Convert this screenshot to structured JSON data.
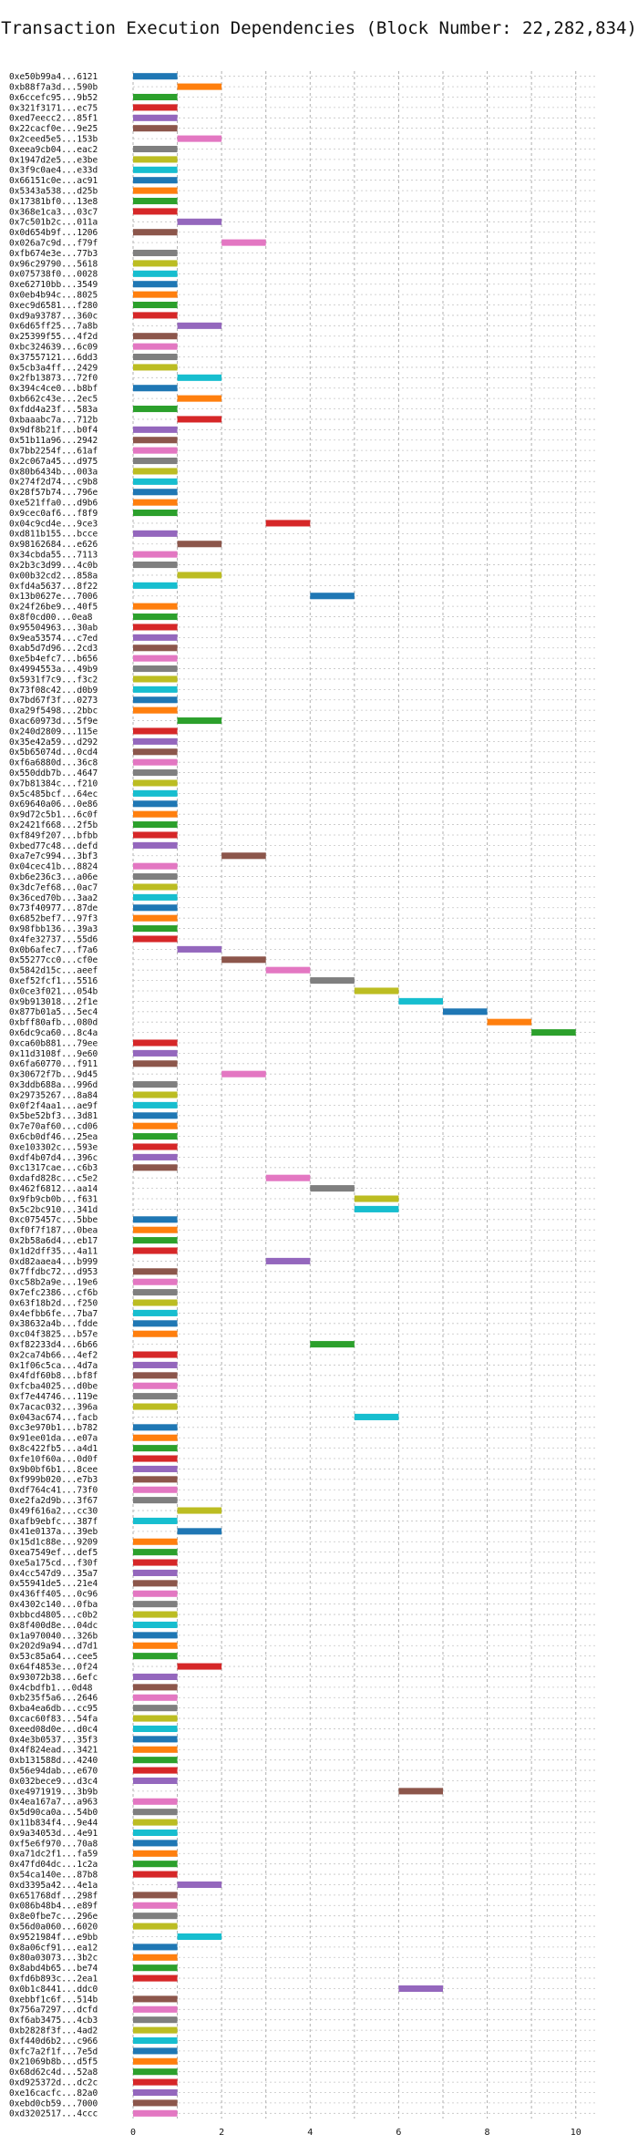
{
  "chart_data": {
    "type": "bar",
    "orientation": "horizontal",
    "title": "Transaction Execution Dependencies (Block Number: 22,282,834)",
    "xlabel": "",
    "ylabel": "",
    "xlim": [
      0,
      10.5
    ],
    "xticks": [
      0,
      2,
      4,
      6,
      8,
      10
    ],
    "grid": true,
    "legend": "none",
    "palette": [
      "#1f77b4",
      "#ff7f0e",
      "#2ca02c",
      "#d62728",
      "#9467bd",
      "#8c564b",
      "#e377c2",
      "#7f7f7f",
      "#bcbd22",
      "#17becf"
    ],
    "transactions": [
      {
        "label": "0xe50b99a4...6121",
        "start": 0,
        "end": 1
      },
      {
        "label": "0xb88f7a3d...590b",
        "start": 1,
        "end": 2
      },
      {
        "label": "0x6ccefc95...9b52",
        "start": 0,
        "end": 1
      },
      {
        "label": "0x321f3171...ec75",
        "start": 0,
        "end": 1
      },
      {
        "label": "0xed7eecc2...85f1",
        "start": 0,
        "end": 1
      },
      {
        "label": "0x22cacf0e...9e25",
        "start": 0,
        "end": 1
      },
      {
        "label": "0x2ceed5e5...153b",
        "start": 1,
        "end": 2
      },
      {
        "label": "0xeea9cb04...eac2",
        "start": 0,
        "end": 1
      },
      {
        "label": "0x1947d2e5...e3be",
        "start": 0,
        "end": 1
      },
      {
        "label": "0x3f9c0ae4...e33d",
        "start": 0,
        "end": 1
      },
      {
        "label": "0x66151c0e...ac91",
        "start": 0,
        "end": 1
      },
      {
        "label": "0x5343a538...d25b",
        "start": 0,
        "end": 1
      },
      {
        "label": "0x17381bf0...13e8",
        "start": 0,
        "end": 1
      },
      {
        "label": "0x368e1ca3...03c7",
        "start": 0,
        "end": 1
      },
      {
        "label": "0x7c501b2c...011a",
        "start": 1,
        "end": 2
      },
      {
        "label": "0x0d654b9f...1206",
        "start": 0,
        "end": 1
      },
      {
        "label": "0x026a7c9d...f79f",
        "start": 2,
        "end": 3
      },
      {
        "label": "0xfb674e3e...77b3",
        "start": 0,
        "end": 1
      },
      {
        "label": "0x96c29790...5618",
        "start": 0,
        "end": 1
      },
      {
        "label": "0x075738f0...0028",
        "start": 0,
        "end": 1
      },
      {
        "label": "0xe62710bb...3549",
        "start": 0,
        "end": 1
      },
      {
        "label": "0x0eb4b94c...8025",
        "start": 0,
        "end": 1
      },
      {
        "label": "0xec9d6581...f280",
        "start": 0,
        "end": 1
      },
      {
        "label": "0xd9a93787...360c",
        "start": 0,
        "end": 1
      },
      {
        "label": "0x6d65ff25...7a8b",
        "start": 1,
        "end": 2
      },
      {
        "label": "0x25399f55...4f2d",
        "start": 0,
        "end": 1
      },
      {
        "label": "0xbc324639...6c09",
        "start": 0,
        "end": 1
      },
      {
        "label": "0x37557121...6dd3",
        "start": 0,
        "end": 1
      },
      {
        "label": "0x5cb3a4ff...2429",
        "start": 0,
        "end": 1
      },
      {
        "label": "0x2fb13873...72f0",
        "start": 1,
        "end": 2
      },
      {
        "label": "0x394c4ce0...b8bf",
        "start": 0,
        "end": 1
      },
      {
        "label": "0xb662c43e...2ec5",
        "start": 1,
        "end": 2
      },
      {
        "label": "0xfdd4a23f...583a",
        "start": 0,
        "end": 1
      },
      {
        "label": "0xbaaabc7a...712b",
        "start": 1,
        "end": 2
      },
      {
        "label": "0x9df8b21f...b0f4",
        "start": 0,
        "end": 1
      },
      {
        "label": "0x51b11a96...2942",
        "start": 0,
        "end": 1
      },
      {
        "label": "0x7bb2254f...61af",
        "start": 0,
        "end": 1
      },
      {
        "label": "0x2c067a45...d975",
        "start": 0,
        "end": 1
      },
      {
        "label": "0x80b6434b...003a",
        "start": 0,
        "end": 1
      },
      {
        "label": "0x274f2d74...c9b8",
        "start": 0,
        "end": 1
      },
      {
        "label": "0x28f57b74...796e",
        "start": 0,
        "end": 1
      },
      {
        "label": "0xe521ffa0...d9b6",
        "start": 0,
        "end": 1
      },
      {
        "label": "0x9cec0af6...f8f9",
        "start": 0,
        "end": 1
      },
      {
        "label": "0x04c9cd4e...9ce3",
        "start": 3,
        "end": 4
      },
      {
        "label": "0xd811b155...bcce",
        "start": 0,
        "end": 1
      },
      {
        "label": "0x98162684...e626",
        "start": 1,
        "end": 2
      },
      {
        "label": "0x34cbda55...7113",
        "start": 0,
        "end": 1
      },
      {
        "label": "0x2b3c3d99...4c0b",
        "start": 0,
        "end": 1
      },
      {
        "label": "0x00b32cd2...858a",
        "start": 1,
        "end": 2
      },
      {
        "label": "0xfd4a5637...8f22",
        "start": 0,
        "end": 1
      },
      {
        "label": "0x13b0627e...7006",
        "start": 4,
        "end": 5
      },
      {
        "label": "0x24f26be9...40f5",
        "start": 0,
        "end": 1
      },
      {
        "label": "0x8f0cd00...0ea8",
        "start": 0,
        "end": 1
      },
      {
        "label": "0x95504963...30ab",
        "start": 0,
        "end": 1
      },
      {
        "label": "0x9ea53574...c7ed",
        "start": 0,
        "end": 1
      },
      {
        "label": "0xab5d7d96...2cd3",
        "start": 0,
        "end": 1
      },
      {
        "label": "0xe5b4efc7...b656",
        "start": 0,
        "end": 1
      },
      {
        "label": "0x4994553a...49b9",
        "start": 0,
        "end": 1
      },
      {
        "label": "0x5931f7c9...f3c2",
        "start": 0,
        "end": 1
      },
      {
        "label": "0x73f08c42...d0b9",
        "start": 0,
        "end": 1
      },
      {
        "label": "0x7bd67f3f...0273",
        "start": 0,
        "end": 1
      },
      {
        "label": "0xa29f5498...2bbc",
        "start": 0,
        "end": 1
      },
      {
        "label": "0xac60973d...5f9e",
        "start": 1,
        "end": 2
      },
      {
        "label": "0x240d2809...115e",
        "start": 0,
        "end": 1
      },
      {
        "label": "0x35e42a59...d292",
        "start": 0,
        "end": 1
      },
      {
        "label": "0x5b65074d...0cd4",
        "start": 0,
        "end": 1
      },
      {
        "label": "0xf6a6880d...36c8",
        "start": 0,
        "end": 1
      },
      {
        "label": "0x550ddb7b...4647",
        "start": 0,
        "end": 1
      },
      {
        "label": "0x7b81384c...f210",
        "start": 0,
        "end": 1
      },
      {
        "label": "0x5c485bcf...64ec",
        "start": 0,
        "end": 1
      },
      {
        "label": "0x69640a06...0e86",
        "start": 0,
        "end": 1
      },
      {
        "label": "0x9d72c5b1...6c0f",
        "start": 0,
        "end": 1
      },
      {
        "label": "0x2421f668...2f5b",
        "start": 0,
        "end": 1
      },
      {
        "label": "0xf849f207...bfbb",
        "start": 0,
        "end": 1
      },
      {
        "label": "0xbed77c48...defd",
        "start": 0,
        "end": 1
      },
      {
        "label": "0xa7e7c994...3bf3",
        "start": 2,
        "end": 3
      },
      {
        "label": "0x04cec41b...8824",
        "start": 0,
        "end": 1
      },
      {
        "label": "0xb6e236c3...a06e",
        "start": 0,
        "end": 1
      },
      {
        "label": "0x3dc7ef68...0ac7",
        "start": 0,
        "end": 1
      },
      {
        "label": "0x36ced70b...3aa2",
        "start": 0,
        "end": 1
      },
      {
        "label": "0x73f40977...87de",
        "start": 0,
        "end": 1
      },
      {
        "label": "0x6852bef7...97f3",
        "start": 0,
        "end": 1
      },
      {
        "label": "0x98fbb136...39a3",
        "start": 0,
        "end": 1
      },
      {
        "label": "0x4fe32737...55d6",
        "start": 0,
        "end": 1
      },
      {
        "label": "0x0b6afec7...f7a6",
        "start": 1,
        "end": 2
      },
      {
        "label": "0x55277cc0...cf0e",
        "start": 2,
        "end": 3
      },
      {
        "label": "0x5842d15c...aeef",
        "start": 3,
        "end": 4
      },
      {
        "label": "0xef52fcf1...5516",
        "start": 4,
        "end": 5
      },
      {
        "label": "0x0ce3f021...054b",
        "start": 5,
        "end": 6
      },
      {
        "label": "0x9b913018...2f1e",
        "start": 6,
        "end": 7
      },
      {
        "label": "0x877b01a5...5ec4",
        "start": 7,
        "end": 8
      },
      {
        "label": "0xbff80afb...080d",
        "start": 8,
        "end": 9
      },
      {
        "label": "0x6dc9ca60...8c4a",
        "start": 9,
        "end": 10
      },
      {
        "label": "0xca60b881...79ee",
        "start": 0,
        "end": 1
      },
      {
        "label": "0x11d3108f...9e60",
        "start": 0,
        "end": 1
      },
      {
        "label": "0x6fa60770...f911",
        "start": 0,
        "end": 1
      },
      {
        "label": "0x30672f7b...9d45",
        "start": 2,
        "end": 3
      },
      {
        "label": "0x3ddb688a...996d",
        "start": 0,
        "end": 1
      },
      {
        "label": "0x29735267...8a84",
        "start": 0,
        "end": 1
      },
      {
        "label": "0x0f2f4aa1...ae9f",
        "start": 0,
        "end": 1
      },
      {
        "label": "0x5be52bf3...3d81",
        "start": 0,
        "end": 1
      },
      {
        "label": "0x7e70af60...cd06",
        "start": 0,
        "end": 1
      },
      {
        "label": "0x6cb0df46...25ea",
        "start": 0,
        "end": 1
      },
      {
        "label": "0xe103302c...593e",
        "start": 0,
        "end": 1
      },
      {
        "label": "0xdf4b07d4...396c",
        "start": 0,
        "end": 1
      },
      {
        "label": "0xc1317cae...c6b3",
        "start": 0,
        "end": 1
      },
      {
        "label": "0xdafd828c...c5e2",
        "start": 3,
        "end": 4
      },
      {
        "label": "0x462f6812...aa14",
        "start": 4,
        "end": 5
      },
      {
        "label": "0x9fb9cb0b...f631",
        "start": 5,
        "end": 6
      },
      {
        "label": "0x5c2bc910...341d",
        "start": 5,
        "end": 6
      },
      {
        "label": "0xc075457c...5bbe",
        "start": 0,
        "end": 1
      },
      {
        "label": "0xf0f7f187...0bea",
        "start": 0,
        "end": 1
      },
      {
        "label": "0x2b58a6d4...eb17",
        "start": 0,
        "end": 1
      },
      {
        "label": "0x1d2dff35...4a11",
        "start": 0,
        "end": 1
      },
      {
        "label": "0xd82aaea4...b999",
        "start": 3,
        "end": 4
      },
      {
        "label": "0x7ffdbc72...d953",
        "start": 0,
        "end": 1
      },
      {
        "label": "0xc58b2a9e...19e6",
        "start": 0,
        "end": 1
      },
      {
        "label": "0x7efc2386...cf6b",
        "start": 0,
        "end": 1
      },
      {
        "label": "0x63f18b2d...f250",
        "start": 0,
        "end": 1
      },
      {
        "label": "0x4efbb6fe...7ba7",
        "start": 0,
        "end": 1
      },
      {
        "label": "0x38632a4b...fdde",
        "start": 0,
        "end": 1
      },
      {
        "label": "0xc04f3825...b57e",
        "start": 0,
        "end": 1
      },
      {
        "label": "0xf82233d4...6b66",
        "start": 4,
        "end": 5
      },
      {
        "label": "0x2ca74b66...4ef2",
        "start": 0,
        "end": 1
      },
      {
        "label": "0x1f06c5ca...4d7a",
        "start": 0,
        "end": 1
      },
      {
        "label": "0x4fdf60b8...bf8f",
        "start": 0,
        "end": 1
      },
      {
        "label": "0xfcba4025...d0be",
        "start": 0,
        "end": 1
      },
      {
        "label": "0xf7e44746...119e",
        "start": 0,
        "end": 1
      },
      {
        "label": "0x7acac032...396a",
        "start": 0,
        "end": 1
      },
      {
        "label": "0x043ac674...facb",
        "start": 5,
        "end": 6
      },
      {
        "label": "0xc3e970b1...b782",
        "start": 0,
        "end": 1
      },
      {
        "label": "0x91ee01da...e07a",
        "start": 0,
        "end": 1
      },
      {
        "label": "0x8c422fb5...a4d1",
        "start": 0,
        "end": 1
      },
      {
        "label": "0xfe10f60a...0d0f",
        "start": 0,
        "end": 1
      },
      {
        "label": "0x9b0bf6b1...8cee",
        "start": 0,
        "end": 1
      },
      {
        "label": "0xf999b020...e7b3",
        "start": 0,
        "end": 1
      },
      {
        "label": "0xdf764c41...73f0",
        "start": 0,
        "end": 1
      },
      {
        "label": "0xe2fa2d9b...3f67",
        "start": 0,
        "end": 1
      },
      {
        "label": "0x49f616a2...cc30",
        "start": 1,
        "end": 2
      },
      {
        "label": "0xafb9ebfc...387f",
        "start": 0,
        "end": 1
      },
      {
        "label": "0x41e0137a...39eb",
        "start": 1,
        "end": 2
      },
      {
        "label": "0x15d1c88e...9209",
        "start": 0,
        "end": 1
      },
      {
        "label": "0xea7549ef...def5",
        "start": 0,
        "end": 1
      },
      {
        "label": "0xe5a175cd...f30f",
        "start": 0,
        "end": 1
      },
      {
        "label": "0x4cc547d9...35a7",
        "start": 0,
        "end": 1
      },
      {
        "label": "0x55941de5...21e4",
        "start": 0,
        "end": 1
      },
      {
        "label": "0x436ff405...0c96",
        "start": 0,
        "end": 1
      },
      {
        "label": "0x4302c140...0fba",
        "start": 0,
        "end": 1
      },
      {
        "label": "0xbbcd4805...c0b2",
        "start": 0,
        "end": 1
      },
      {
        "label": "0x8f400d8e...04dc",
        "start": 0,
        "end": 1
      },
      {
        "label": "0x1a970040...326b",
        "start": 0,
        "end": 1
      },
      {
        "label": "0x202d9a94...d7d1",
        "start": 0,
        "end": 1
      },
      {
        "label": "0x53c85a64...cee5",
        "start": 0,
        "end": 1
      },
      {
        "label": "0x64f4853e...0f24",
        "start": 1,
        "end": 2
      },
      {
        "label": "0x93072b38...6efc",
        "start": 0,
        "end": 1
      },
      {
        "label": "0x4cbdfb1...0d48",
        "start": 0,
        "end": 1
      },
      {
        "label": "0xb235f5a6...2646",
        "start": 0,
        "end": 1
      },
      {
        "label": "0xba4ea6db...cc95",
        "start": 0,
        "end": 1
      },
      {
        "label": "0xcac60f83...54fa",
        "start": 0,
        "end": 1
      },
      {
        "label": "0xeed08d0e...d0c4",
        "start": 0,
        "end": 1
      },
      {
        "label": "0x4e3b0537...35f3",
        "start": 0,
        "end": 1
      },
      {
        "label": "0x4f824ead...3421",
        "start": 0,
        "end": 1
      },
      {
        "label": "0xb131588d...4240",
        "start": 0,
        "end": 1
      },
      {
        "label": "0x56e94dab...e670",
        "start": 0,
        "end": 1
      },
      {
        "label": "0x032bece9...d3c4",
        "start": 0,
        "end": 1
      },
      {
        "label": "0xe4971919...3b9b",
        "start": 6,
        "end": 7
      },
      {
        "label": "0x4ea167a7...a963",
        "start": 0,
        "end": 1
      },
      {
        "label": "0x5d90ca0a...54b0",
        "start": 0,
        "end": 1
      },
      {
        "label": "0x11b834f4...9e44",
        "start": 0,
        "end": 1
      },
      {
        "label": "0x9a34053d...4e91",
        "start": 0,
        "end": 1
      },
      {
        "label": "0xf5e6f970...70a8",
        "start": 0,
        "end": 1
      },
      {
        "label": "0xa71dc2f1...fa59",
        "start": 0,
        "end": 1
      },
      {
        "label": "0x47fd04dc...1c2a",
        "start": 0,
        "end": 1
      },
      {
        "label": "0x54ca140e...87b8",
        "start": 0,
        "end": 1
      },
      {
        "label": "0xd3395a42...4e1a",
        "start": 1,
        "end": 2
      },
      {
        "label": "0x651768df...298f",
        "start": 0,
        "end": 1
      },
      {
        "label": "0x086b48b4...e89f",
        "start": 0,
        "end": 1
      },
      {
        "label": "0x8e0fbe7c...296e",
        "start": 0,
        "end": 1
      },
      {
        "label": "0x56d0a060...6020",
        "start": 0,
        "end": 1
      },
      {
        "label": "0x9521984f...e9bb",
        "start": 1,
        "end": 2
      },
      {
        "label": "0x8a06cf91...ea12",
        "start": 0,
        "end": 1
      },
      {
        "label": "0x80a03073...3b2c",
        "start": 0,
        "end": 1
      },
      {
        "label": "0x8abd4b65...be74",
        "start": 0,
        "end": 1
      },
      {
        "label": "0xfd6b893c...2ea1",
        "start": 0,
        "end": 1
      },
      {
        "label": "0x0b1c8441...ddc0",
        "start": 6,
        "end": 7
      },
      {
        "label": "0xebbf1c6f...514b",
        "start": 0,
        "end": 1
      },
      {
        "label": "0x756a7297...dcfd",
        "start": 0,
        "end": 1
      },
      {
        "label": "0xf6ab3475...4cb3",
        "start": 0,
        "end": 1
      },
      {
        "label": "0xb2828f3f...4ad2",
        "start": 0,
        "end": 1
      },
      {
        "label": "0xf440d6b2...c966",
        "start": 0,
        "end": 1
      },
      {
        "label": "0xfc7a2f1f...7e5d",
        "start": 0,
        "end": 1
      },
      {
        "label": "0x21069b8b...d5f5",
        "start": 0,
        "end": 1
      },
      {
        "label": "0x68d62c4d...52a8",
        "start": 0,
        "end": 1
      },
      {
        "label": "0xd925372d...dc2c",
        "start": 0,
        "end": 1
      },
      {
        "label": "0xe16cacfc...82a0",
        "start": 0,
        "end": 1
      },
      {
        "label": "0xebd0cb59...7000",
        "start": 0,
        "end": 1
      },
      {
        "label": "0xd3202517...4ccc",
        "start": 0,
        "end": 1
      }
    ]
  }
}
